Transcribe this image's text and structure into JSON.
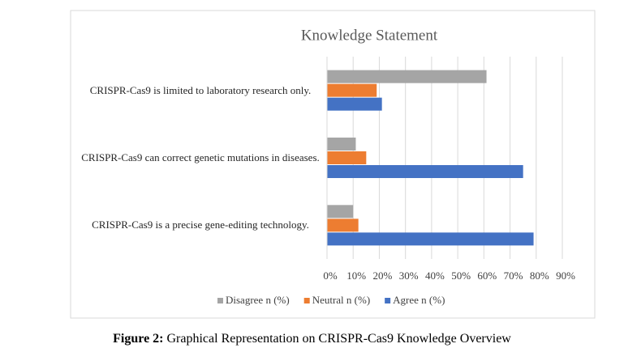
{
  "chart_data": {
    "type": "bar",
    "orientation": "horizontal",
    "title": "Knowledge Statement",
    "categories": [
      "CRISPR-Cas9 is limited to laboratory research only.",
      "CRISPR-Cas9 can correct genetic mutations in diseases.",
      "CRISPR-Cas9 is a precise gene-editing technology."
    ],
    "series": [
      {
        "name": "Disagree n (%)",
        "color": "#a5a5a5",
        "values": [
          61,
          11,
          10
        ]
      },
      {
        "name": "Neutral n (%)",
        "color": "#ed7d31",
        "values": [
          19,
          15,
          12
        ]
      },
      {
        "name": "Agree n (%)",
        "color": "#4472c4",
        "values": [
          21,
          75,
          79
        ]
      }
    ],
    "xlim": [
      0,
      90
    ],
    "xticks": [
      {
        "value": 0,
        "label": "0%"
      },
      {
        "value": 10,
        "label": "10%"
      },
      {
        "value": 20,
        "label": "20%"
      },
      {
        "value": 30,
        "label": "30%"
      },
      {
        "value": 40,
        "label": "40%"
      },
      {
        "value": 50,
        "label": "50%"
      },
      {
        "value": 60,
        "label": "60%"
      },
      {
        "value": 70,
        "label": "70%"
      },
      {
        "value": 80,
        "label": "80%"
      },
      {
        "value": 90,
        "label": "90%"
      }
    ],
    "grid": true,
    "legend": "bottom"
  },
  "caption": {
    "label": "Figure 2:",
    "text": "Graphical Representation on CRISPR-Cas9 Knowledge Overview"
  }
}
